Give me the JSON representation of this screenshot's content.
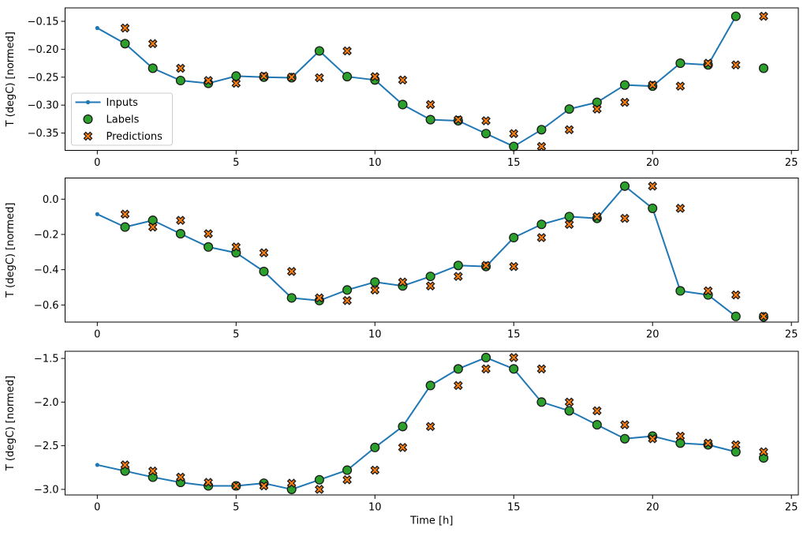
{
  "figure": {
    "xlabel": "Time [h]",
    "ylabel": "T (degC) [normed]",
    "colors": {
      "inputs": "#1f77b4",
      "labels": "#2ca02c",
      "predictions": "#ff7f0e",
      "marker_edge": "#1a1a1a",
      "spine": "#000000",
      "text": "#000000",
      "legend_border": "#cccccc",
      "background": "#ffffff"
    },
    "legend": {
      "items": [
        {
          "label": "Inputs",
          "marker": "line-dot",
          "color": "#1f77b4"
        },
        {
          "label": "Labels",
          "marker": "circle",
          "color": "#2ca02c"
        },
        {
          "label": "Predictions",
          "marker": "x",
          "color": "#ff7f0e"
        }
      ]
    }
  },
  "chart_data": [
    {
      "type": "line",
      "title": "",
      "xlabel": "",
      "ylabel": "T (degC) [normed]",
      "xlim": [
        -1.16,
        25.25
      ],
      "ylim": [
        -0.381,
        -0.126
      ],
      "grid": false,
      "xticks": {
        "values": [
          0,
          5,
          10,
          15,
          20,
          25
        ],
        "labels": [
          "0",
          "5",
          "10",
          "15",
          "20",
          "25"
        ]
      },
      "yticks": {
        "values": [
          -0.15,
          -0.2,
          -0.25,
          -0.3,
          -0.35
        ],
        "labels": [
          "−0.15",
          "−0.20",
          "−0.25",
          "−0.30",
          "−0.35"
        ]
      },
      "series": [
        {
          "name": "Inputs",
          "type": "line",
          "marker": "dot",
          "x": [
            0,
            1,
            2,
            3,
            4,
            5,
            6,
            7,
            8,
            9,
            10,
            11,
            12,
            13,
            14,
            15,
            16,
            17,
            18,
            19,
            20,
            21,
            22,
            23
          ],
          "y": [
            -0.162,
            -0.19,
            -0.234,
            -0.256,
            -0.261,
            -0.248,
            -0.25,
            -0.251,
            -0.203,
            -0.249,
            -0.255,
            -0.299,
            -0.326,
            -0.328,
            -0.351,
            -0.374,
            -0.344,
            -0.307,
            -0.295,
            -0.264,
            -0.266,
            -0.225,
            -0.228,
            -0.141
          ]
        },
        {
          "name": "Labels",
          "type": "scatter",
          "marker": "circle",
          "x": [
            1,
            2,
            3,
            4,
            5,
            6,
            7,
            8,
            9,
            10,
            11,
            12,
            13,
            14,
            15,
            16,
            17,
            18,
            19,
            20,
            21,
            22,
            23,
            24
          ],
          "y": [
            -0.19,
            -0.234,
            -0.256,
            -0.261,
            -0.248,
            -0.25,
            -0.251,
            -0.203,
            -0.249,
            -0.255,
            -0.299,
            -0.326,
            -0.328,
            -0.351,
            -0.374,
            -0.344,
            -0.307,
            -0.295,
            -0.264,
            -0.266,
            -0.225,
            -0.228,
            -0.141,
            -0.234
          ]
        },
        {
          "name": "Predictions",
          "type": "scatter",
          "marker": "X",
          "x": [
            1,
            2,
            3,
            4,
            5,
            6,
            7,
            8,
            9,
            10,
            11,
            12,
            13,
            14,
            15,
            16,
            17,
            18,
            19,
            20,
            21,
            22,
            23,
            24
          ],
          "y": [
            -0.162,
            -0.19,
            -0.234,
            -0.256,
            -0.261,
            -0.248,
            -0.25,
            -0.251,
            -0.203,
            -0.249,
            -0.255,
            -0.299,
            -0.326,
            -0.328,
            -0.351,
            -0.374,
            -0.344,
            -0.307,
            -0.295,
            -0.264,
            -0.266,
            -0.225,
            -0.228,
            -0.141
          ]
        }
      ]
    },
    {
      "type": "line",
      "title": "",
      "xlabel": "",
      "ylabel": "T (degC) [normed]",
      "xlim": [
        -1.16,
        25.25
      ],
      "ylim": [
        -0.697,
        0.12
      ],
      "grid": false,
      "xticks": {
        "values": [
          0,
          5,
          10,
          15,
          20,
          25
        ],
        "labels": [
          "0",
          "5",
          "10",
          "15",
          "20",
          "25"
        ]
      },
      "yticks": {
        "values": [
          0.0,
          -0.2,
          -0.4,
          -0.6
        ],
        "labels": [
          "0.0",
          "−0.2",
          "−0.4",
          "−0.6"
        ]
      },
      "series": [
        {
          "name": "Inputs",
          "type": "line",
          "marker": "dot",
          "x": [
            0,
            1,
            2,
            3,
            4,
            5,
            6,
            7,
            8,
            9,
            10,
            11,
            12,
            13,
            14,
            15,
            16,
            17,
            18,
            19,
            20,
            21,
            22,
            23
          ],
          "y": [
            -0.085,
            -0.158,
            -0.12,
            -0.196,
            -0.271,
            -0.304,
            -0.41,
            -0.56,
            -0.575,
            -0.515,
            -0.47,
            -0.492,
            -0.438,
            -0.376,
            -0.382,
            -0.218,
            -0.143,
            -0.099,
            -0.109,
            0.074,
            -0.052,
            -0.52,
            -0.543,
            -0.665
          ]
        },
        {
          "name": "Labels",
          "type": "scatter",
          "marker": "circle",
          "x": [
            1,
            2,
            3,
            4,
            5,
            6,
            7,
            8,
            9,
            10,
            11,
            12,
            13,
            14,
            15,
            16,
            17,
            18,
            19,
            20,
            21,
            22,
            23,
            24
          ],
          "y": [
            -0.158,
            -0.12,
            -0.196,
            -0.271,
            -0.304,
            -0.41,
            -0.56,
            -0.575,
            -0.515,
            -0.47,
            -0.492,
            -0.438,
            -0.376,
            -0.382,
            -0.218,
            -0.143,
            -0.099,
            -0.109,
            0.074,
            -0.052,
            -0.52,
            -0.543,
            -0.665,
            -0.668
          ]
        },
        {
          "name": "Predictions",
          "type": "scatter",
          "marker": "X",
          "x": [
            1,
            2,
            3,
            4,
            5,
            6,
            7,
            8,
            9,
            10,
            11,
            12,
            13,
            14,
            15,
            16,
            17,
            18,
            19,
            20,
            21,
            22,
            23,
            24
          ],
          "y": [
            -0.085,
            -0.158,
            -0.12,
            -0.196,
            -0.271,
            -0.304,
            -0.41,
            -0.56,
            -0.575,
            -0.515,
            -0.47,
            -0.492,
            -0.438,
            -0.376,
            -0.382,
            -0.218,
            -0.143,
            -0.099,
            -0.109,
            0.074,
            -0.052,
            -0.52,
            -0.543,
            -0.665
          ]
        }
      ]
    },
    {
      "type": "line",
      "title": "",
      "xlabel": "Time [h]",
      "ylabel": "T (degC) [normed]",
      "xlim": [
        -1.16,
        25.25
      ],
      "ylim": [
        -3.064,
        -1.418
      ],
      "grid": false,
      "xticks": {
        "values": [
          0,
          5,
          10,
          15,
          20,
          25
        ],
        "labels": [
          "0",
          "5",
          "10",
          "15",
          "20",
          "25"
        ]
      },
      "yticks": {
        "values": [
          -1.5,
          -2.0,
          -2.5,
          -3.0
        ],
        "labels": [
          "−1.5",
          "−2.0",
          "−2.5",
          "−3.0"
        ]
      },
      "series": [
        {
          "name": "Inputs",
          "type": "line",
          "marker": "dot",
          "x": [
            0,
            1,
            2,
            3,
            4,
            5,
            6,
            7,
            8,
            9,
            10,
            11,
            12,
            13,
            14,
            15,
            16,
            17,
            18,
            19,
            20,
            21,
            22,
            23
          ],
          "y": [
            -2.72,
            -2.79,
            -2.86,
            -2.92,
            -2.96,
            -2.96,
            -2.93,
            -3.0,
            -2.89,
            -2.78,
            -2.52,
            -2.28,
            -1.81,
            -1.62,
            -1.49,
            -1.62,
            -2.0,
            -2.1,
            -2.26,
            -2.42,
            -2.39,
            -2.47,
            -2.49,
            -2.57
          ]
        },
        {
          "name": "Labels",
          "type": "scatter",
          "marker": "circle",
          "x": [
            1,
            2,
            3,
            4,
            5,
            6,
            7,
            8,
            9,
            10,
            11,
            12,
            13,
            14,
            15,
            16,
            17,
            18,
            19,
            20,
            21,
            22,
            23,
            24
          ],
          "y": [
            -2.79,
            -2.86,
            -2.92,
            -2.96,
            -2.96,
            -2.93,
            -3.0,
            -2.89,
            -2.78,
            -2.52,
            -2.28,
            -1.81,
            -1.62,
            -1.49,
            -1.62,
            -2.0,
            -2.1,
            -2.26,
            -2.42,
            -2.39,
            -2.47,
            -2.49,
            -2.57,
            -2.64
          ]
        },
        {
          "name": "Predictions",
          "type": "scatter",
          "marker": "X",
          "x": [
            1,
            2,
            3,
            4,
            5,
            6,
            7,
            8,
            9,
            10,
            11,
            12,
            13,
            14,
            15,
            16,
            17,
            18,
            19,
            20,
            21,
            22,
            23,
            24
          ],
          "y": [
            -2.72,
            -2.79,
            -2.86,
            -2.92,
            -2.96,
            -2.96,
            -2.93,
            -3.0,
            -2.89,
            -2.78,
            -2.52,
            -2.28,
            -1.81,
            -1.62,
            -1.49,
            -1.62,
            -2.0,
            -2.1,
            -2.26,
            -2.42,
            -2.39,
            -2.47,
            -2.49,
            -2.57
          ]
        }
      ]
    }
  ]
}
